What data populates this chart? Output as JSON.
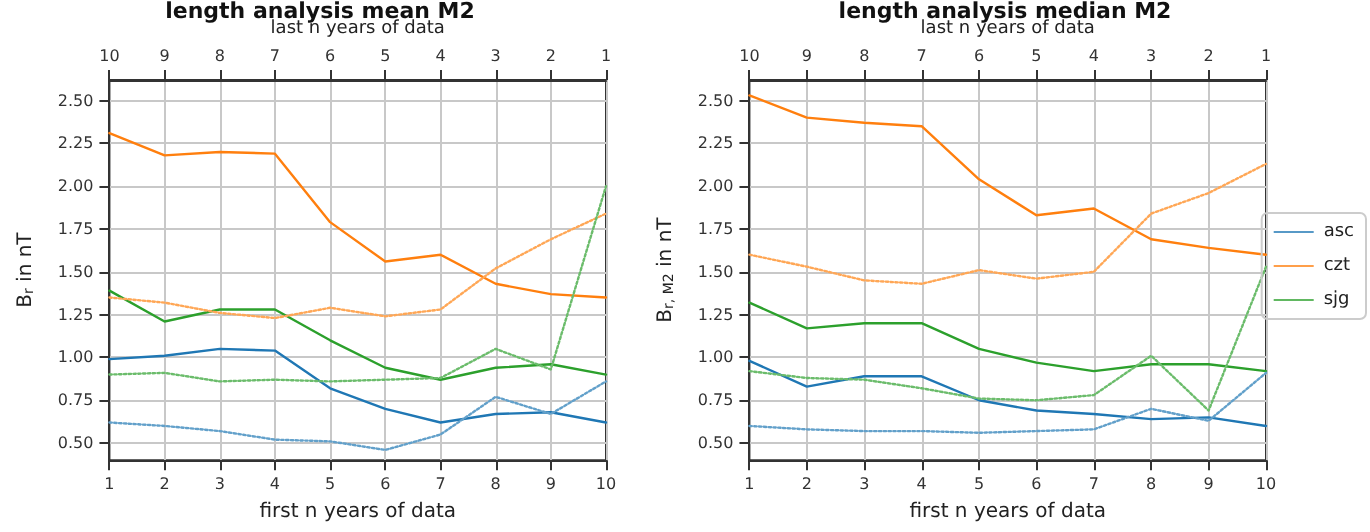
{
  "chart_data": [
    {
      "type": "line",
      "title": "length analysis mean M2",
      "xlabel": "first n years of data",
      "x2label": "last n years of data",
      "ylabel": "B$_{r}$ in nT",
      "x": [
        1,
        2,
        3,
        4,
        5,
        6,
        7,
        8,
        9,
        10
      ],
      "xlim": [
        1,
        10
      ],
      "xticks": [
        1,
        2,
        3,
        4,
        5,
        6,
        7,
        8,
        9,
        10
      ],
      "x2lim": [
        10,
        1
      ],
      "x2ticks": [
        10,
        9,
        8,
        7,
        6,
        5,
        4,
        3,
        2,
        1
      ],
      "ylim": [
        0.4,
        2.62
      ],
      "yticks": [
        {
          "value": 0.5,
          "label": "0.50"
        },
        {
          "value": 0.75,
          "label": "0.75"
        },
        {
          "value": 1,
          "label": "1.00"
        },
        {
          "value": 1.25,
          "label": "1.25"
        },
        {
          "value": 1.5,
          "label": "1.50"
        },
        {
          "value": 1.75,
          "label": "1.75"
        },
        {
          "value": 2,
          "label": "2.00"
        },
        {
          "value": 2.25,
          "label": "2.25"
        },
        {
          "value": 2.5,
          "label": "2.50"
        }
      ],
      "grid": true,
      "marker": "none",
      "series": [
        {
          "color": "#1f77b4",
          "line_style": "solid",
          "values": [
            0.99,
            1.01,
            1.05,
            1.04,
            0.82,
            0.7,
            0.62,
            0.67,
            0.68,
            0.62
          ]
        },
        {
          "color": "#ff7f0e",
          "line_style": "solid",
          "values": [
            2.31,
            2.18,
            2.2,
            2.19,
            1.79,
            1.56,
            1.6,
            1.43,
            1.37,
            1.35
          ]
        },
        {
          "color": "#2ca02c",
          "line_style": "solid",
          "values": [
            1.39,
            1.21,
            1.28,
            1.28,
            1.1,
            0.94,
            0.87,
            0.94,
            0.96,
            0.9
          ]
        },
        {
          "color": "#62a0ca",
          "line_style": "dotted",
          "axis": "x2",
          "x": [
            10,
            9,
            8,
            7,
            6,
            5,
            4,
            3,
            2,
            1
          ],
          "values": [
            0.62,
            0.6,
            0.57,
            0.52,
            0.51,
            0.46,
            0.55,
            0.77,
            0.67,
            0.86
          ]
        },
        {
          "color": "#ffa756",
          "line_style": "dotted",
          "axis": "x2",
          "x": [
            10,
            9,
            8,
            7,
            6,
            5,
            4,
            3,
            2,
            1
          ],
          "values": [
            1.35,
            1.32,
            1.26,
            1.23,
            1.29,
            1.24,
            1.28,
            1.52,
            1.69,
            1.84
          ]
        },
        {
          "color": "#6bbc6b",
          "line_style": "dotted",
          "axis": "x2",
          "x": [
            10,
            9,
            8,
            7,
            6,
            5,
            4,
            3,
            2,
            1
          ],
          "values": [
            0.9,
            0.91,
            0.86,
            0.87,
            0.86,
            0.87,
            0.88,
            1.05,
            0.93,
            2.0
          ]
        }
      ]
    },
    {
      "type": "line",
      "title": "length analysis median M2",
      "xlabel": "first n years of data",
      "x2label": "last n years of data",
      "ylabel": "B$_{r, M2}$ in nT",
      "x": [
        1,
        2,
        3,
        4,
        5,
        6,
        7,
        8,
        9,
        10
      ],
      "xlim": [
        1,
        10
      ],
      "xticks": [
        1,
        2,
        3,
        4,
        5,
        6,
        7,
        8,
        9,
        10
      ],
      "x2lim": [
        10,
        1
      ],
      "x2ticks": [
        10,
        9,
        8,
        7,
        6,
        5,
        4,
        3,
        2,
        1
      ],
      "ylim": [
        0.4,
        2.62
      ],
      "yticks": [
        {
          "value": 0.5,
          "label": "0.50"
        },
        {
          "value": 0.75,
          "label": "0.75"
        },
        {
          "value": 1,
          "label": "1.00"
        },
        {
          "value": 1.25,
          "label": "1.25"
        },
        {
          "value": 1.5,
          "label": "1.50"
        },
        {
          "value": 1.75,
          "label": "1.75"
        },
        {
          "value": 2,
          "label": "2.00"
        },
        {
          "value": 2.25,
          "label": "2.25"
        },
        {
          "value": 2.5,
          "label": "2.50"
        }
      ],
      "grid": true,
      "marker": "none",
      "legend": "right",
      "series": [
        {
          "name": "asc",
          "color": "#1f77b4",
          "line_style": "solid",
          "values": [
            0.98,
            0.83,
            0.89,
            0.89,
            0.75,
            0.69,
            0.67,
            0.64,
            0.65,
            0.6
          ]
        },
        {
          "name": "czt",
          "color": "#ff7f0e",
          "line_style": "solid",
          "values": [
            2.53,
            2.4,
            2.37,
            2.35,
            2.04,
            1.83,
            1.87,
            1.69,
            1.64,
            1.6
          ]
        },
        {
          "name": "sjg",
          "color": "#2ca02c",
          "line_style": "solid",
          "values": [
            1.32,
            1.17,
            1.2,
            1.2,
            1.05,
            0.97,
            0.92,
            0.96,
            0.96,
            0.92
          ]
        },
        {
          "color": "#62a0ca",
          "line_style": "dotted",
          "axis": "x2",
          "x": [
            10,
            9,
            8,
            7,
            6,
            5,
            4,
            3,
            2,
            1
          ],
          "values": [
            0.6,
            0.58,
            0.57,
            0.57,
            0.56,
            0.57,
            0.58,
            0.7,
            0.63,
            0.91
          ]
        },
        {
          "color": "#ffa756",
          "line_style": "dotted",
          "axis": "x2",
          "x": [
            10,
            9,
            8,
            7,
            6,
            5,
            4,
            3,
            2,
            1
          ],
          "values": [
            1.6,
            1.53,
            1.45,
            1.43,
            1.51,
            1.46,
            1.5,
            1.84,
            1.96,
            2.13
          ]
        },
        {
          "color": "#6bbc6b",
          "line_style": "dotted",
          "axis": "x2",
          "x": [
            10,
            9,
            8,
            7,
            6,
            5,
            4,
            3,
            2,
            1
          ],
          "values": [
            0.92,
            0.88,
            0.87,
            0.82,
            0.76,
            0.75,
            0.78,
            1.01,
            0.69,
            1.53
          ]
        }
      ]
    }
  ]
}
